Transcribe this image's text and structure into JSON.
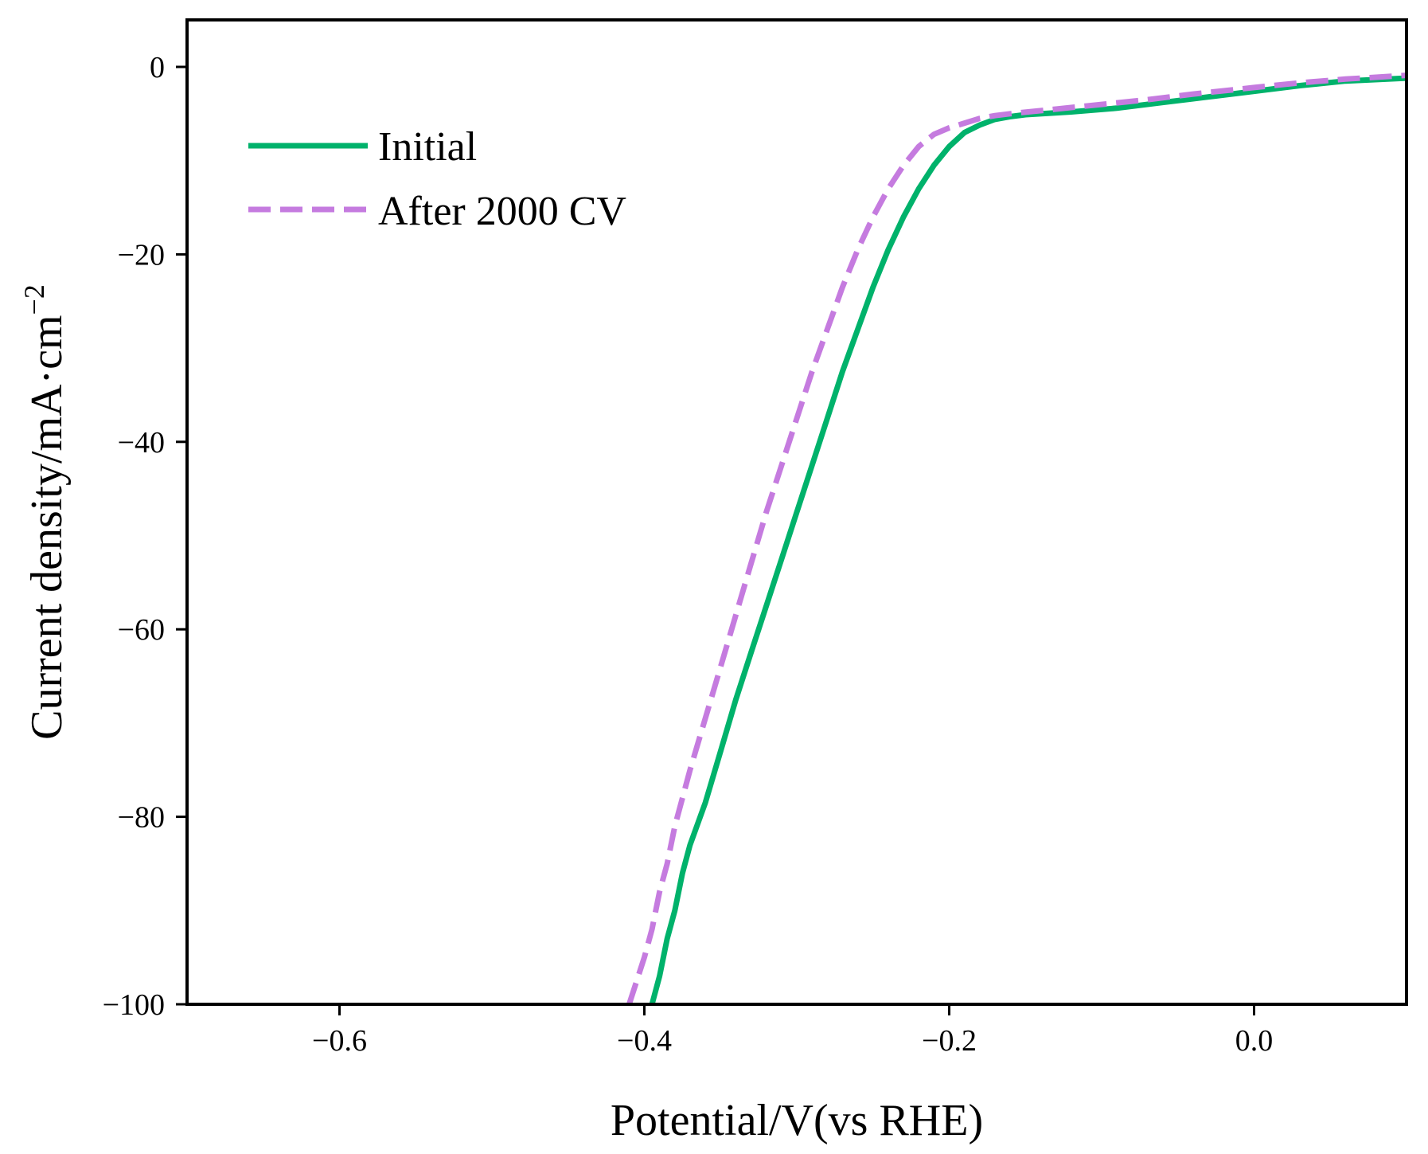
{
  "chart_data": {
    "type": "line",
    "title": "",
    "xlabel": "Potential/V(vs RHE)",
    "ylabel": "Current density/mA·cm",
    "ylabel_superscript": "−2",
    "xlim": [
      -0.7,
      0.1
    ],
    "ylim": [
      -100,
      5
    ],
    "xticks": [
      -0.6,
      -0.4,
      -0.2,
      0.0
    ],
    "xtick_labels": [
      "−0.6",
      "−0.4",
      "−0.2",
      "0.0"
    ],
    "yticks": [
      0,
      -20,
      -40,
      -60,
      -80,
      -100
    ],
    "ytick_labels": [
      "0",
      "−20",
      "−40",
      "−60",
      "−80",
      "−100"
    ],
    "grid": false,
    "legend_position": "top-left",
    "series": [
      {
        "name": "Initial",
        "color": "#00b26b",
        "style": "solid",
        "x": [
          -0.395,
          -0.39,
          -0.385,
          -0.38,
          -0.375,
          -0.37,
          -0.36,
          -0.35,
          -0.34,
          -0.33,
          -0.32,
          -0.31,
          -0.3,
          -0.29,
          -0.28,
          -0.27,
          -0.26,
          -0.25,
          -0.24,
          -0.23,
          -0.22,
          -0.21,
          -0.2,
          -0.19,
          -0.18,
          -0.17,
          -0.16,
          -0.15,
          -0.12,
          -0.09,
          -0.06,
          -0.03,
          0.0,
          0.03,
          0.06,
          0.1
        ],
        "y": [
          -100,
          -97,
          -93,
          -90,
          -86,
          -83,
          -78.5,
          -73,
          -67.5,
          -62.5,
          -57.5,
          -52.5,
          -47.5,
          -42.5,
          -37.5,
          -32.5,
          -28,
          -23.5,
          -19.5,
          -16,
          -13,
          -10.5,
          -8.5,
          -7,
          -6.2,
          -5.6,
          -5.3,
          -5.1,
          -4.8,
          -4.4,
          -3.8,
          -3.2,
          -2.6,
          -2.0,
          -1.5,
          -1.2
        ]
      },
      {
        "name": "After 2000 CV",
        "color": "#c57bdf",
        "style": "dashed",
        "x": [
          -0.41,
          -0.4,
          -0.395,
          -0.39,
          -0.385,
          -0.38,
          -0.37,
          -0.36,
          -0.35,
          -0.34,
          -0.33,
          -0.32,
          -0.31,
          -0.3,
          -0.29,
          -0.28,
          -0.27,
          -0.26,
          -0.25,
          -0.24,
          -0.23,
          -0.22,
          -0.21,
          -0.2,
          -0.19,
          -0.18,
          -0.17,
          -0.16,
          -0.13,
          -0.1,
          -0.07,
          -0.04,
          0.0,
          0.03,
          0.06,
          0.1
        ],
        "y": [
          -100,
          -95,
          -92,
          -88,
          -85,
          -81,
          -75,
          -69.5,
          -64,
          -58.5,
          -53,
          -47.5,
          -42.5,
          -37.5,
          -32.5,
          -28,
          -23.5,
          -19.5,
          -16,
          -13,
          -10.5,
          -8.5,
          -7.2,
          -6.5,
          -6,
          -5.5,
          -5.2,
          -5,
          -4.5,
          -4,
          -3.5,
          -2.9,
          -2.2,
          -1.7,
          -1.3,
          -0.9
        ]
      }
    ]
  }
}
